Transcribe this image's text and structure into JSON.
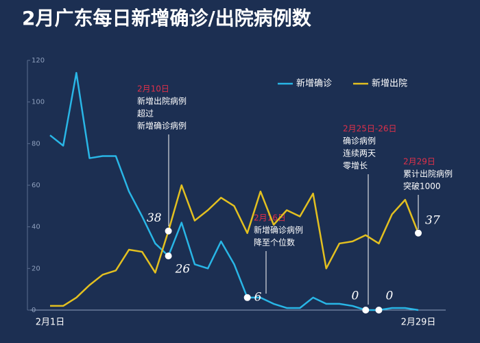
{
  "chart_data": {
    "type": "line",
    "title": "2月广东每日新增确诊/出院病例数",
    "categories": [
      "2月1日",
      null,
      null,
      null,
      null,
      null,
      null,
      null,
      null,
      null,
      null,
      null,
      null,
      null,
      null,
      null,
      null,
      null,
      null,
      null,
      null,
      null,
      null,
      null,
      null,
      null,
      null,
      null,
      "2月29日"
    ],
    "series": [
      {
        "name": "新增确诊",
        "color": "#29b6e6",
        "values": [
          84,
          79,
          114,
          73,
          74,
          74,
          57,
          45,
          32,
          26,
          42,
          22,
          20,
          33,
          22,
          6,
          6,
          3,
          1,
          1,
          6,
          3,
          3,
          2,
          0,
          0,
          1,
          1,
          0
        ],
        "labeled": [
          9,
          15,
          24,
          25
        ]
      },
      {
        "name": "新增出院",
        "color": "#e3c020",
        "values": [
          2,
          2,
          6,
          12,
          17,
          19,
          29,
          28,
          18,
          38,
          60,
          43,
          48,
          54,
          50,
          37,
          57,
          41,
          48,
          45,
          56,
          20,
          32,
          33,
          36,
          32,
          46,
          53,
          37
        ],
        "labeled": [
          9,
          28
        ]
      }
    ],
    "ylim": [
      0,
      120
    ],
    "yticks": [
      0,
      20,
      40,
      60,
      80,
      100,
      120
    ],
    "legend": "top",
    "annotations": [
      {
        "date": "2月10日",
        "lines": [
          "新增出院病例",
          "超过",
          "新增确诊病例"
        ]
      },
      {
        "date": "2月16日",
        "lines": [
          "新增确诊病例",
          "降至个位数"
        ]
      },
      {
        "date": "2月25日-26日",
        "lines": [
          "确诊病例",
          "连续两天",
          "零增长"
        ]
      },
      {
        "date": "2月29日",
        "lines": [
          "累计出院病例",
          "突破1000"
        ]
      }
    ]
  }
}
